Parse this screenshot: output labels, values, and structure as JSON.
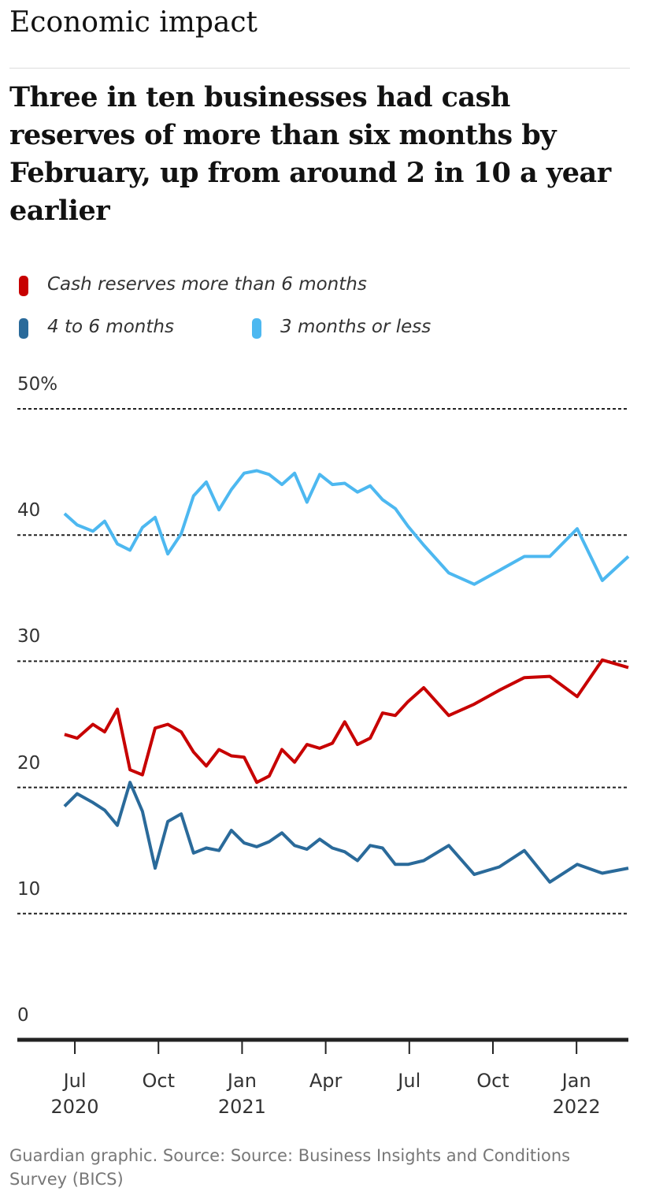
{
  "chart_data": {
    "type": "line",
    "section": "Economic impact",
    "title": "Three in ten businesses had cash reserves of more than six months by February, up from around 2 in 10 a year earlier",
    "source": "Guardian graphic. Source: Source: Business Insights and Conditions Survey (BICS)",
    "x": [
      2020.469,
      2020.507,
      2020.554,
      2020.589,
      2020.627,
      2020.665,
      2020.702,
      2020.74,
      2020.778,
      2020.818,
      2020.855,
      2020.893,
      2020.931,
      2020.968,
      2021.006,
      2021.044,
      2021.081,
      2021.119,
      2021.157,
      2021.194,
      2021.232,
      2021.27,
      2021.307,
      2021.345,
      2021.383,
      2021.42,
      2021.458,
      2021.496,
      2021.543,
      2021.618,
      2021.694,
      2021.769,
      2021.844,
      2021.92,
      2022.002,
      2022.077,
      2022.155
    ],
    "series": [
      {
        "name": "Cash reserves more than 6 months",
        "color": "#c70000",
        "values": [
          24.2,
          23.9,
          25.0,
          24.4,
          26.2,
          21.4,
          21.0,
          24.7,
          25.0,
          24.4,
          22.8,
          21.7,
          23.0,
          22.5,
          22.4,
          20.4,
          20.9,
          23.0,
          22.0,
          23.4,
          23.1,
          23.5,
          25.2,
          23.4,
          23.9,
          25.9,
          25.7,
          26.8,
          27.9,
          25.7,
          26.6,
          27.7,
          28.7,
          28.8,
          27.2,
          30.1,
          29.5
        ]
      },
      {
        "name": "4 to 6 months",
        "color": "#2a6a9a",
        "values": [
          18.5,
          19.5,
          18.8,
          18.2,
          17.0,
          20.4,
          18.1,
          13.6,
          17.3,
          17.9,
          14.8,
          15.2,
          15.0,
          16.6,
          15.6,
          15.3,
          15.7,
          16.4,
          15.4,
          15.1,
          15.9,
          15.2,
          14.9,
          14.2,
          15.4,
          15.2,
          13.9,
          13.9,
          14.2,
          15.4,
          13.1,
          13.7,
          15.0,
          12.5,
          13.9,
          13.2,
          13.6
        ]
      },
      {
        "name": "3 months or less",
        "color": "#4db8f0",
        "values": [
          41.7,
          40.8,
          40.3,
          41.1,
          39.3,
          38.8,
          40.6,
          41.4,
          38.5,
          40.1,
          43.1,
          44.2,
          42.0,
          43.6,
          44.9,
          45.1,
          44.8,
          44.0,
          44.9,
          42.6,
          44.8,
          44.0,
          44.1,
          43.4,
          43.9,
          42.8,
          42.1,
          40.7,
          39.2,
          37.0,
          36.1,
          37.2,
          38.3,
          38.3,
          40.5,
          36.4,
          38.3
        ]
      }
    ],
    "xlim": [
      2020.328,
      2022.155
    ],
    "xticks": [
      {
        "value": 2020.5,
        "label": "Jul\n2020"
      },
      {
        "value": 2020.75,
        "label": "Oct"
      },
      {
        "value": 2021.0,
        "label": "Jan\n2021"
      },
      {
        "value": 2021.25,
        "label": "Apr"
      },
      {
        "value": 2021.5,
        "label": "Jul"
      },
      {
        "value": 2021.75,
        "label": "Oct"
      },
      {
        "value": 2022.0,
        "label": "Jan\n2022"
      }
    ],
    "ylim": [
      0,
      50
    ],
    "yticks": [
      0,
      10,
      20,
      30,
      40,
      {
        "value": 50,
        "label": "50%"
      }
    ],
    "grid": true
  }
}
